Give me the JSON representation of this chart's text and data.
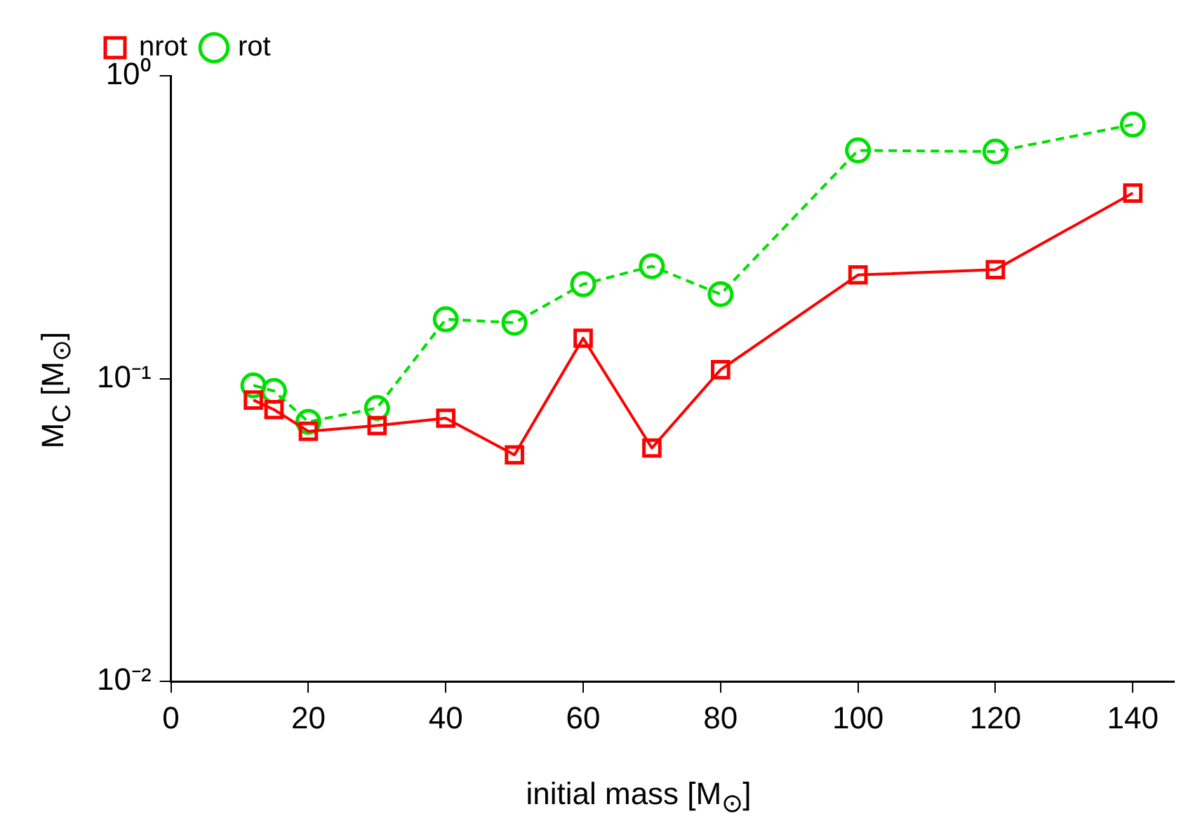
{
  "chart_data": {
    "type": "line",
    "xlabel": "initial mass [M$_{⊙}$]",
    "ylabel": "M$_{C}$ [M$_{⊙}$]",
    "x": [
      12,
      15,
      20,
      30,
      40,
      50,
      60,
      70,
      80,
      100,
      120,
      140
    ],
    "series": [
      {
        "name": "nrot",
        "color": "#ff0000",
        "marker": "square",
        "line_style": "solid",
        "values": [
          0.085,
          0.079,
          0.067,
          0.07,
          0.074,
          0.056,
          0.136,
          0.059,
          0.107,
          0.22,
          0.229,
          0.41
        ]
      },
      {
        "name": "rot",
        "color": "#00e000",
        "marker": "circle",
        "line_style": "dashed",
        "values": [
          0.095,
          0.091,
          0.072,
          0.08,
          0.157,
          0.153,
          0.205,
          0.235,
          0.19,
          0.567,
          0.562,
          0.69
        ]
      }
    ],
    "xlim": [
      0,
      146
    ],
    "xticks": [
      0,
      20,
      40,
      60,
      80,
      100,
      120,
      140
    ],
    "ylim": [
      0.01,
      1
    ],
    "yticks": [
      {
        "value": 0.01,
        "label": "10⁻²"
      },
      {
        "value": 0.1,
        "label": "10⁻¹"
      },
      {
        "value": 1,
        "label": "10⁰"
      }
    ],
    "log": "y",
    "grid": false,
    "legend": "top left"
  }
}
